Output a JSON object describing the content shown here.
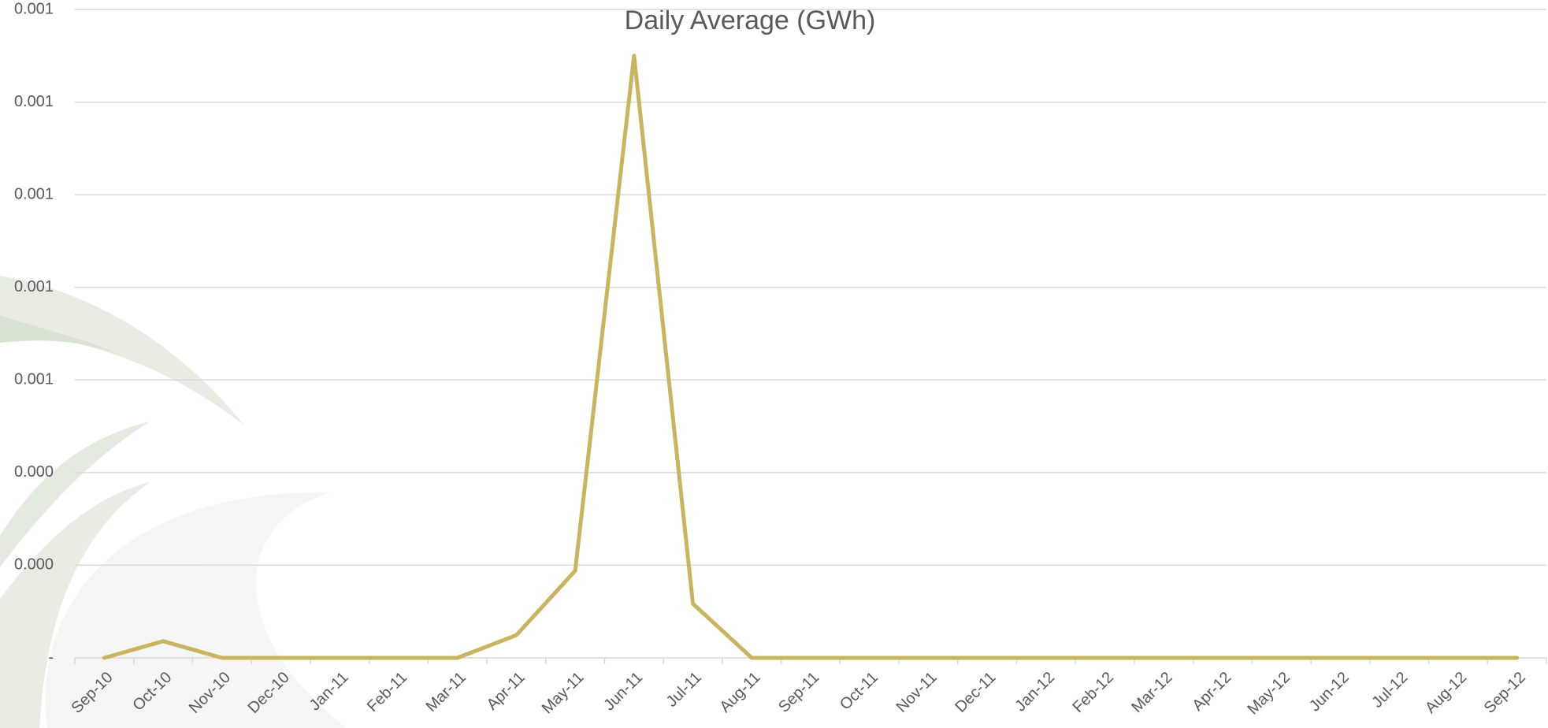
{
  "chart_data": {
    "type": "line",
    "title": "Daily Average (GWh)",
    "categories": [
      "Sep-10",
      "Oct-10",
      "Nov-10",
      "Dec-10",
      "Jan-11",
      "Feb-11",
      "Mar-11",
      "Apr-11",
      "May-11",
      "Jun-11",
      "Jul-11",
      "Aug-11",
      "Sep-11",
      "Oct-11",
      "Nov-11",
      "Dec-11",
      "Jan-12",
      "Feb-12",
      "Mar-12",
      "Apr-12",
      "May-12",
      "Jun-12",
      "Jul-12",
      "Aug-12",
      "Sep-12"
    ],
    "series": [
      {
        "name": "Daily Average (GWh)",
        "color": "#c9b560",
        "values": [
          0,
          3.6e-05,
          0,
          0,
          0,
          0,
          0,
          4.9e-05,
          0.000188,
          0.0013,
          0.000117,
          0,
          0,
          0,
          0,
          0,
          0,
          0,
          0,
          0,
          0,
          0,
          0,
          0,
          0
        ]
      }
    ],
    "ylim": [
      0,
      0.0014
    ],
    "yticks": [
      {
        "value": 0,
        "label": "-"
      },
      {
        "value": 0.0002,
        "label": "0.000"
      },
      {
        "value": 0.0004,
        "label": "0.000"
      },
      {
        "value": 0.0006,
        "label": "0.001"
      },
      {
        "value": 0.0008,
        "label": "0.001"
      },
      {
        "value": 0.001,
        "label": "0.001"
      },
      {
        "value": 0.0012,
        "label": "0.001"
      },
      {
        "value": 0.0014,
        "label": "0.001"
      }
    ],
    "grid": true
  }
}
